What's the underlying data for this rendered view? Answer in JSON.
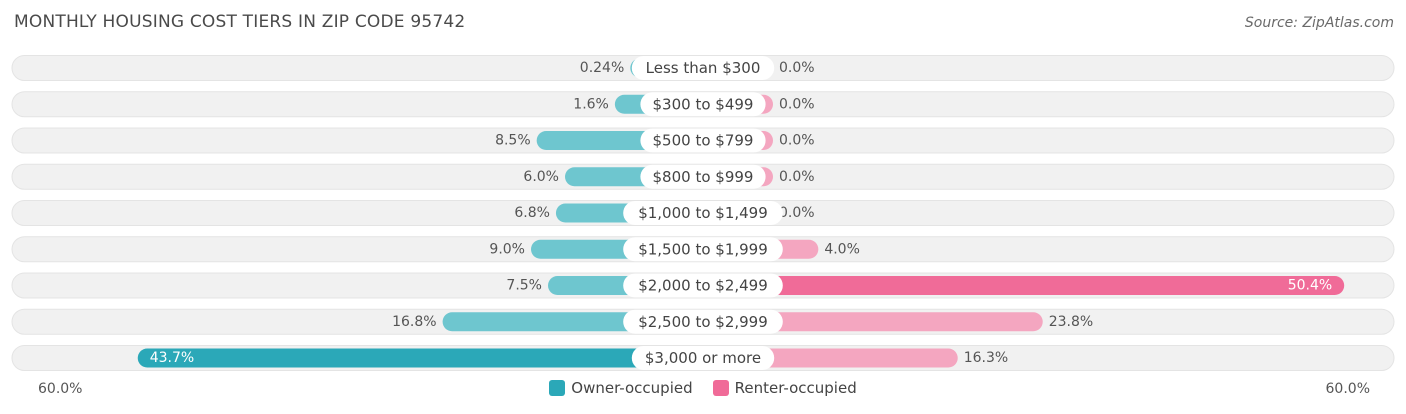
{
  "title": "MONTHLY HOUSING COST TIERS IN ZIP CODE 95742",
  "source": "Source: ZipAtlas.com",
  "colors": {
    "owner": "#6ec6cf",
    "owner_strong": "#2ba8b8",
    "renter": "#f4a6c0",
    "renter_strong": "#f06b98",
    "track": "#f1f1f1"
  },
  "axis": {
    "left_label": "60.0%",
    "right_label": "60.0%"
  },
  "legend": {
    "owner": "Owner-occupied",
    "renter": "Renter-occupied"
  },
  "chart_data": {
    "type": "bar",
    "orientation": "horizontal-diverging",
    "xlim": [
      -60,
      60
    ],
    "categories": [
      "Less than $300",
      "$300 to $499",
      "$500 to $799",
      "$800 to $999",
      "$1,000 to $1,499",
      "$1,500 to $1,999",
      "$2,000 to $2,499",
      "$2,500 to $2,999",
      "$3,000 or more"
    ],
    "series": [
      {
        "name": "Owner-occupied",
        "values": [
          0.24,
          1.6,
          8.5,
          6.0,
          6.8,
          9.0,
          7.5,
          16.8,
          43.7
        ],
        "labels": [
          "0.24%",
          "1.6%",
          "8.5%",
          "6.0%",
          "6.8%",
          "9.0%",
          "7.5%",
          "16.8%",
          "43.7%"
        ]
      },
      {
        "name": "Renter-occupied",
        "values": [
          0.0,
          0.0,
          0.0,
          0.0,
          0.0,
          4.0,
          50.4,
          23.8,
          16.3
        ],
        "labels": [
          "0.0%",
          "0.0%",
          "0.0%",
          "0.0%",
          "0.0%",
          "4.0%",
          "50.4%",
          "23.8%",
          "16.3%"
        ]
      }
    ]
  }
}
